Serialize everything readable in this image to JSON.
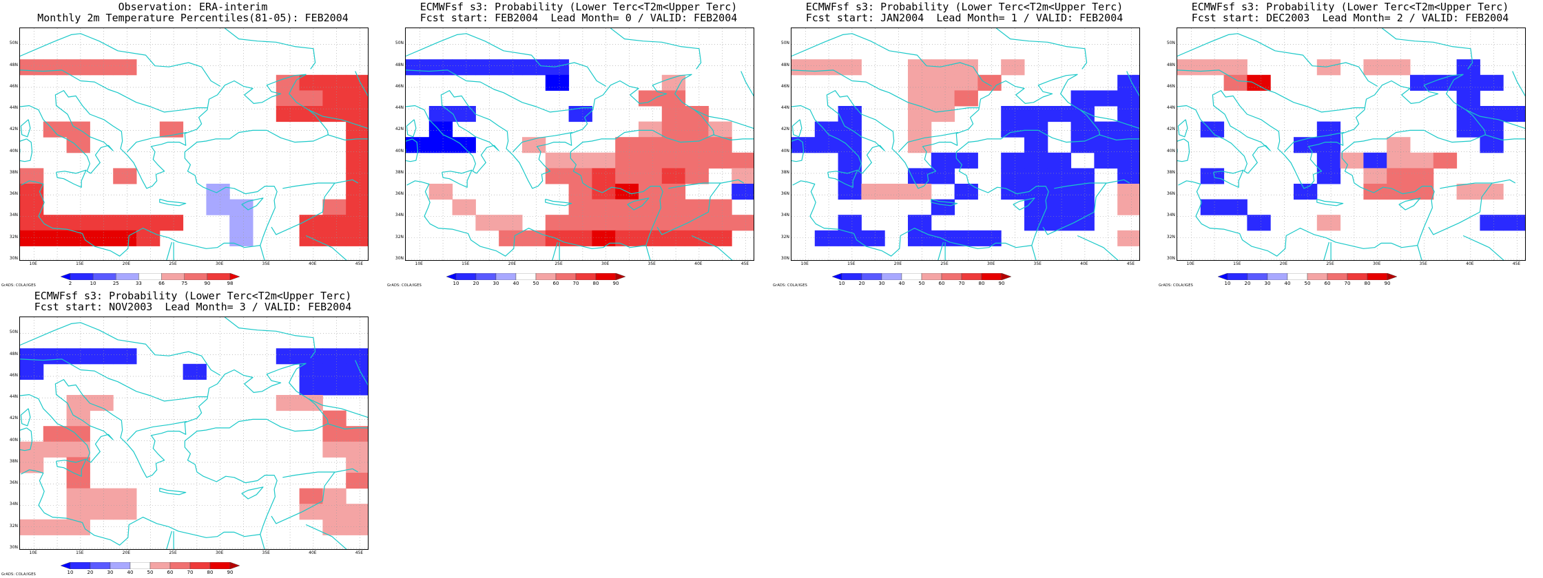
{
  "credit_text": "GrADS: COLA/IGES",
  "lat_ticks": [
    "30N",
    "32N",
    "34N",
    "36N",
    "38N",
    "40N",
    "42N",
    "44N",
    "46N",
    "48N",
    "50N"
  ],
  "lon_ticks": [
    "10E",
    "15E",
    "20E",
    "25E",
    "30E",
    "35E",
    "40E",
    "45E"
  ],
  "map_extent": {
    "lon": [
      8.5,
      46
    ],
    "lat": [
      29.8,
      51.5
    ],
    "grid_step_deg": 2.5,
    "grid_lines": "dotted"
  },
  "coastline_color": "#19c8c8",
  "scales": {
    "percentile": {
      "labels": [
        "2",
        "10",
        "25",
        "33",
        "66",
        "75",
        "90",
        "98"
      ],
      "colors": [
        "#0000ff",
        "#2a2aff",
        "#5a5aff",
        "#a8a8ff",
        "#ffffff",
        "#f4a4a4",
        "#f07070",
        "#ee3a3a",
        "#e60000"
      ]
    },
    "probability": {
      "labels": [
        "10",
        "20",
        "30",
        "40",
        "50",
        "60",
        "70",
        "80",
        "90"
      ],
      "colors": [
        "#0000ff",
        "#2a2aff",
        "#5a5aff",
        "#a8a8ff",
        "#ffffff",
        "#f4a4a4",
        "#f07070",
        "#ee3a3a",
        "#e60000",
        "#b40000"
      ]
    }
  },
  "panels": [
    {
      "title_line1": "Observation: ERA-interim",
      "title_line2": "Monthly 2m Temperature Percentiles(81-05): FEB2004",
      "scale": "percentile",
      "grid": [
        "WWWWWWWWWWWWWWW",
        "WWWWWWWWWWWWWWW",
        "66666WWWWWWWWWW",
        "WWWWWWWWWWW6777",
        "WWWWWWWWWWW6677",
        "WWWWWWWWWWW7777",
        "W66WWW6WWWWWWW7",
        "WW6WWWWWWWWWWW7",
        "WWWWWWWWWWWWWW7",
        "6WWW6WWWWWWWWW7",
        "7WWWWWWW3WWWWW7",
        "7WWWWWWW33WWW67",
        "7777777WW3WW777",
        "888887WWW3WW777",
        "WWWWWWWWWWWWWWW"
      ]
    },
    {
      "title_line1": "ECMWFsf s3: Probability (Lower Terc<T2m<Upper Terc)",
      "title_line2": "Fcst start: FEB2004  Lead Month= 0 / VALID: FEB2004",
      "scale": "probability",
      "grid": [
        "WWWWWWWWWWWWWWW",
        "WWWWWWWWWWWWWWW",
        "1111111WWWWWWWW",
        "WWWWWW0WWWW5WWW",
        "WWWWWWWWWW66WWW",
        "W11WWWW1WWW66WW",
        "W0WWWWWWWW5665W",
        "000WW5WWW66666W",
        "WWWWWW555666666",
        "WWWWWW6676676W5",
        "W5WWWWW67866WW1",
        "WW5WWWW6666666W",
        "WWW55W666666666",
        "WWWW6677877777W",
        "WWWWWWWWWWWWWWW"
      ]
    },
    {
      "title_line1": "ECMWFsf s3: Probability (Lower Terc<T2m<Upper Terc)",
      "title_line2": "Fcst start: JAN2004  Lead Month= 1 / VALID: FEB2004",
      "scale": "probability",
      "grid": [
        "WWWWWWWWWWWWWWW",
        "WWWWWWWWWWWWWWW",
        "555WW555W5WWWWW",
        "WWWWW5556WWWWW1",
        "WWWWW556WWWW111",
        "WW1WW55WW1111W1",
        "W11WW5WWW11W111",
        "111WW5WWWW1W111",
        "WW1WWW11W111W11",
        "WW1WW11WW1111W1",
        "WW1555W1W1111W5",
        "WWWWWW1WWW111W5",
        "WW1WW1WWWW111WW",
        "W111W1111WWWWW5",
        "WWWWWWWWWWWWWWW"
      ]
    },
    {
      "title_line1": "ECMWFsf s3: Probability (Lower Terc<T2m<Upper Terc)",
      "title_line2": "Fcst start: DEC2003  Lead Month= 2 / VALID: FEB2004",
      "scale": "probability",
      "grid": [
        "WWWWWWWWWWWWWWW",
        "WWWWWWWWWWWWWWW",
        "555WWW5W55WW1WW",
        "WW68WWWWWW1111W",
        "WWWWWWWWWWWW1WW",
        "WWWWWWWWWWWW111",
        "W1WWWW1WWWWW11W",
        "WWWWW11WW5WWW1W",
        "WWWWWW151556WWW",
        "W1WWWW1W566WWWW",
        "WWWWW1WW666W55W",
        "W11WWWWWWWWWWWW",
        "WWW1WW5WWWWWW11",
        "WWWWWWWWWWWWWWW",
        "WWWWWWWWWWWWWWW"
      ]
    },
    {
      "title_line1": "ECMWFsf s3: Probability (Lower Terc<T2m<Upper Terc)",
      "title_line2": "Fcst start: NOV2003  Lead Month= 3 / VALID: FEB2004",
      "scale": "probability",
      "grid": [
        "WWWWWWWWWWWWWWW",
        "WWWWWWWWWWWWWWW",
        "11111WWWWWW1111",
        "1WWWWWW1WWWW111",
        "WWWWWWWWWWWW111",
        "WW55WWWWWWW55WW",
        "WW5WWWWWWWWWW6W",
        "W66WWWWWWWWWW66",
        "555WWWWWWWWWW55",
        "5W6WWWWWWWWWWW5",
        "WW6WWWWWWWWWWW6",
        "WW555WWWWWWW65W",
        "WW555WWWWWWW555",
        "555WWWWWWWWWW55",
        "WWWWWWWWWWWWWWW"
      ]
    }
  ]
}
